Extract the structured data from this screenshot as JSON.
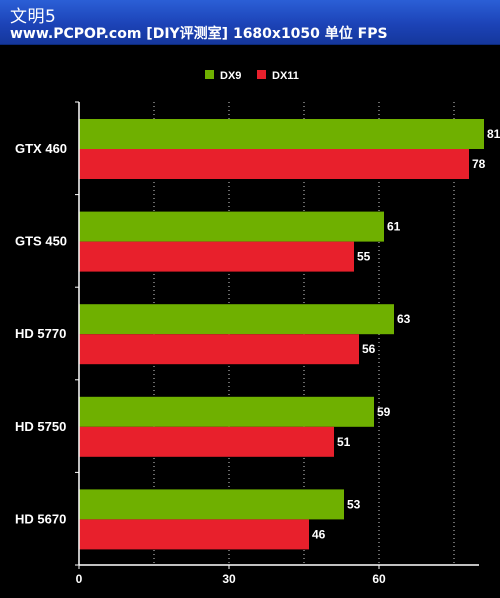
{
  "header": {
    "title": "文明5",
    "subtitle": "www.PCPOP.com [DIY评测室]    1680x1050  单位 FPS"
  },
  "colors": {
    "dx9": "#6fb000",
    "dx11": "#e8202c",
    "background": "#000000",
    "header": "#1c43b7"
  },
  "chart_data": {
    "type": "bar",
    "orientation": "horizontal",
    "title": "",
    "xlabel": "",
    "ylabel": "",
    "categories": [
      "GTX 460",
      "GTS 450",
      "HD 5770",
      "HD 5750",
      "HD 5670"
    ],
    "series": [
      {
        "name": "DX9",
        "values": [
          81,
          61,
          63,
          59,
          53
        ]
      },
      {
        "name": "DX11",
        "values": [
          78,
          55,
          56,
          51,
          46
        ]
      }
    ],
    "xlim": [
      0,
      80
    ],
    "ticks": [
      0,
      30,
      60
    ],
    "grid": "vertical-dotted",
    "legend": "top-center"
  }
}
